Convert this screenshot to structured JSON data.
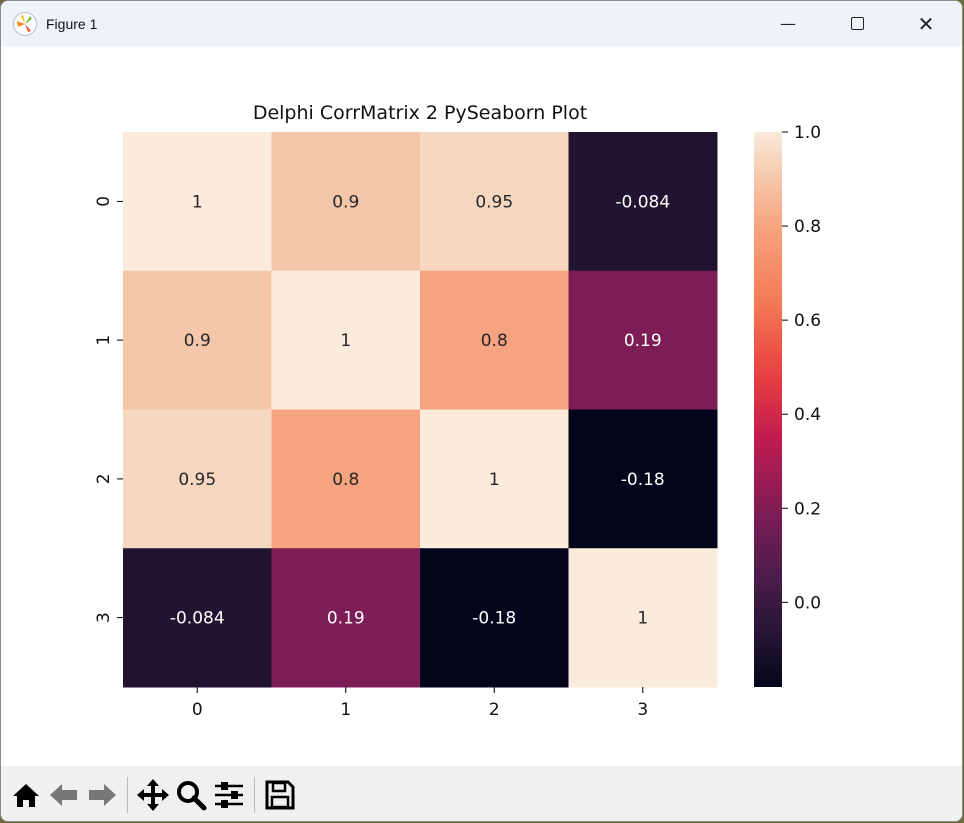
{
  "window": {
    "title": "Figure 1"
  },
  "toolbar": {
    "icons": [
      "home-icon",
      "back-icon",
      "forward-icon",
      "pan-icon",
      "zoom-icon",
      "configure-subplots-icon",
      "save-icon"
    ]
  },
  "chart_data": {
    "type": "heatmap",
    "title": "Delphi CorrMatrix 2 PySeaborn Plot",
    "x_labels": [
      "0",
      "1",
      "2",
      "3"
    ],
    "y_labels": [
      "0",
      "1",
      "2",
      "3"
    ],
    "values": [
      [
        1,
        0.9,
        0.95,
        -0.084
      ],
      [
        0.9,
        1,
        0.8,
        0.19
      ],
      [
        0.95,
        0.8,
        1,
        -0.18
      ],
      [
        -0.084,
        0.19,
        -0.18,
        1
      ]
    ],
    "annotations": [
      [
        "1",
        "0.9",
        "0.95",
        "-0.084"
      ],
      [
        "0.9",
        "1",
        "0.8",
        "0.19"
      ],
      [
        "0.95",
        "0.8",
        "1",
        "-0.18"
      ],
      [
        "-0.084",
        "0.19",
        "-0.18",
        "1"
      ]
    ],
    "colormap": "rocket",
    "vmin": -0.18,
    "vmax": 1.0,
    "colorbar_ticks": [
      "0.0",
      "0.2",
      "0.4",
      "0.6",
      "0.8",
      "1.0"
    ]
  }
}
